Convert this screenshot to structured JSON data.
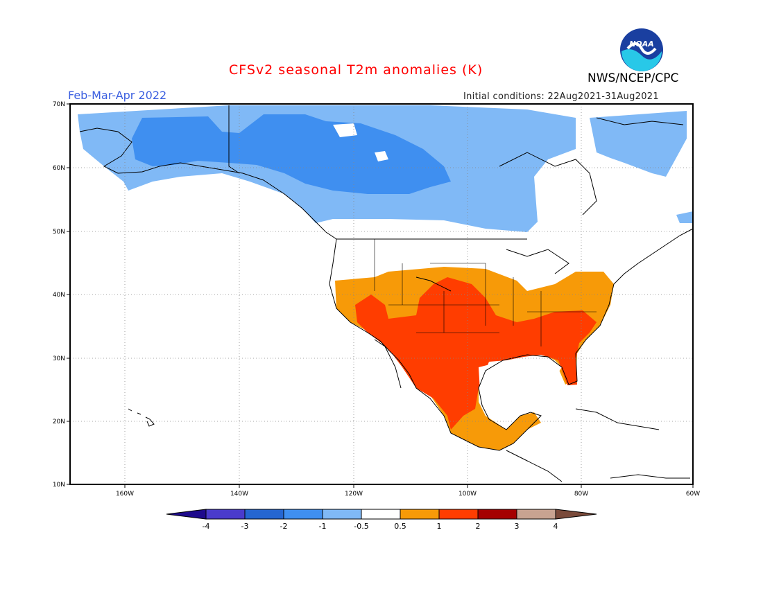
{
  "header": {
    "title": "CFSv2 seasonal T2m anomalies (K)",
    "season": "Feb-Mar-Apr 2022",
    "initial_conditions": "Initial conditions: 22Aug2021-31Aug2021",
    "agency": "NWS/NCEP/CPC",
    "logo_text": "NOAA"
  },
  "map": {
    "lat_labels": [
      "70N",
      "60N",
      "50N",
      "40N",
      "30N",
      "20N",
      "10N"
    ],
    "lon_labels": [
      "160W",
      "140W",
      "120W",
      "100W",
      "80W",
      "60W"
    ]
  },
  "colorbar": {
    "levels": [
      "-4",
      "-3",
      "-2",
      "-1",
      "-0.5",
      "0.5",
      "1",
      "2",
      "3",
      "4"
    ],
    "colors": [
      "#1e0a8c",
      "#4a3bcc",
      "#2566d1",
      "#3f8ff0",
      "#80b9f6",
      "#ffffff",
      "#f79a08",
      "#ff3d00",
      "#a50000",
      "#c8a391",
      "#7a4a3a"
    ]
  }
}
